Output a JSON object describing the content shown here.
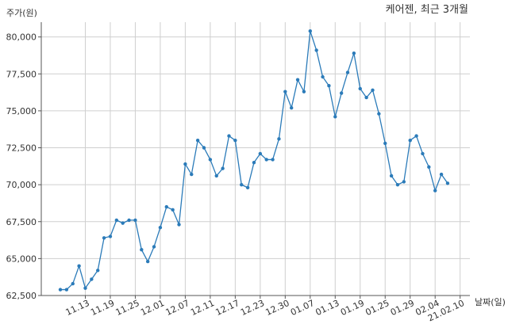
{
  "chart_data": {
    "type": "line",
    "title": "케어젠, 최근 3개월",
    "xlabel": "날짜(일)",
    "ylabel": "주가(원)",
    "grid": true,
    "ylim": [
      62500,
      81000
    ],
    "yticks": [
      62500,
      65000,
      67500,
      70000,
      72500,
      75000,
      77500,
      80000
    ],
    "ytick_labels": [
      "62,500",
      "65,000",
      "67,500",
      "70,000",
      "72,500",
      "75,000",
      "77,500",
      "80,000"
    ],
    "xtick_labels": [
      "11.13",
      "11.19",
      "11.25",
      "12.01",
      "12.07",
      "12.11",
      "12.17",
      "12.23",
      "12.30",
      "01.07",
      "01.13",
      "01.19",
      "01.25",
      "01.29",
      "02.04",
      "21.02.10"
    ],
    "xtick_index": [
      4,
      8,
      12,
      16,
      20,
      24,
      28,
      32,
      36,
      40,
      44,
      48,
      52,
      56,
      60,
      64
    ],
    "series": [
      {
        "name": "",
        "color": "#2b7bb9",
        "values": [
          62900,
          62900,
          63300,
          64500,
          63000,
          63600,
          64200,
          66400,
          66500,
          67600,
          67400,
          67600,
          67600,
          65600,
          64800,
          65800,
          67100,
          68500,
          68300,
          67300,
          71400,
          70700,
          73000,
          72500,
          71700,
          70600,
          71100,
          73300,
          73000,
          70000,
          69800,
          71500,
          72100,
          71700,
          71700,
          73100,
          76300,
          75200,
          77100,
          76300,
          80400,
          79100,
          77300,
          76700,
          74600,
          76200,
          77600,
          78900,
          76500,
          75900,
          76400,
          74800,
          72800,
          70600,
          70000,
          70200,
          73000,
          73300,
          72100,
          71200,
          69600,
          70700,
          70100
        ]
      }
    ]
  }
}
